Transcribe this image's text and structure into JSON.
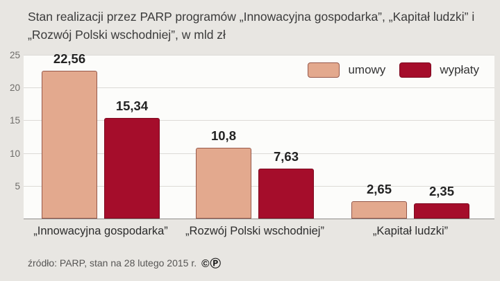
{
  "title": {
    "text": "Stan realizacji przez PARP programów „Innowacyjna gospodarka”, „Kapitał ludzki” i „Rozwój Polski wschodniej”, w mld zł"
  },
  "footer": {
    "source": "źródło: PARP, stan na 28 lutego 2015 r.",
    "license": "©Ⓟ"
  },
  "chart_data": {
    "type": "bar",
    "title": "Stan realizacji przez PARP programów, w mld zł",
    "categories": [
      "„Innowacyjna gospodarka”",
      "„Rozwój Polski wschodniej”",
      "„Kapitał ludzki”"
    ],
    "series": [
      {
        "name": "umowy",
        "values": [
          22.56,
          10.8,
          2.65
        ],
        "labels": [
          "22,56",
          "10,8",
          "2,65"
        ],
        "color": "#e3a98e",
        "border": "#96584a"
      },
      {
        "name": "wypłaty",
        "values": [
          15.34,
          7.63,
          2.35
        ],
        "labels": [
          "15,34",
          "7,63",
          "2,35"
        ],
        "color": "#a50d2b",
        "border": "#7d0a20"
      }
    ],
    "ylim": [
      0,
      25
    ],
    "yticks": [
      5,
      10,
      15,
      20,
      25
    ],
    "grid": true,
    "legend_position": "top-right",
    "unit": "mld zł"
  }
}
